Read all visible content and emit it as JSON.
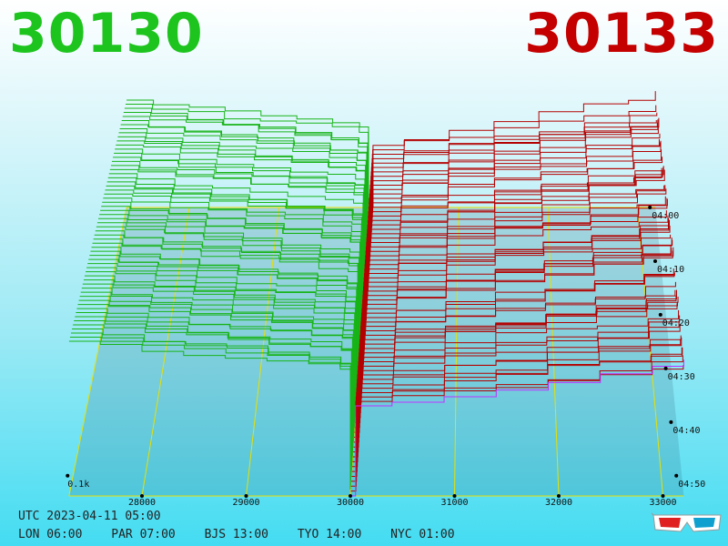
{
  "header": {
    "bid": "30130",
    "ask": "30133",
    "bid_color": "#1ec41e",
    "ask_color": "#c40000"
  },
  "footer": {
    "utc": "UTC 2023-04-11 05:00",
    "zones": [
      "LON 06:00",
      "PAR 07:00",
      "BJS 13:00",
      "TYO 14:00",
      "NYC 01:00"
    ]
  },
  "chart_data": {
    "type": "area",
    "x": [
      27300,
      28000,
      29000,
      30000,
      31000,
      32000,
      33000
    ],
    "x_ticks": [
      "28000",
      "29000",
      "30000",
      "31000",
      "32000",
      "33000"
    ],
    "z_label": "0.1k",
    "time_ticks": [
      "04:00",
      "04:10",
      "04:20",
      "04:30",
      "04:40",
      "04:50"
    ],
    "series": [
      {
        "color": "#18b418",
        "values": [
          0.95,
          0.92,
          0.88,
          0.82,
          null,
          null,
          null
        ]
      },
      {
        "color": "#b40000",
        "values": [
          null,
          null,
          null,
          0.82,
          0.86,
          0.92,
          1.0
        ]
      }
    ],
    "grid_color": "#e8e000",
    "latest_line_color": "#c030ff",
    "ylim": [
      0,
      1.0
    ]
  },
  "icons": {
    "glasses": "3d-glasses-icon"
  }
}
